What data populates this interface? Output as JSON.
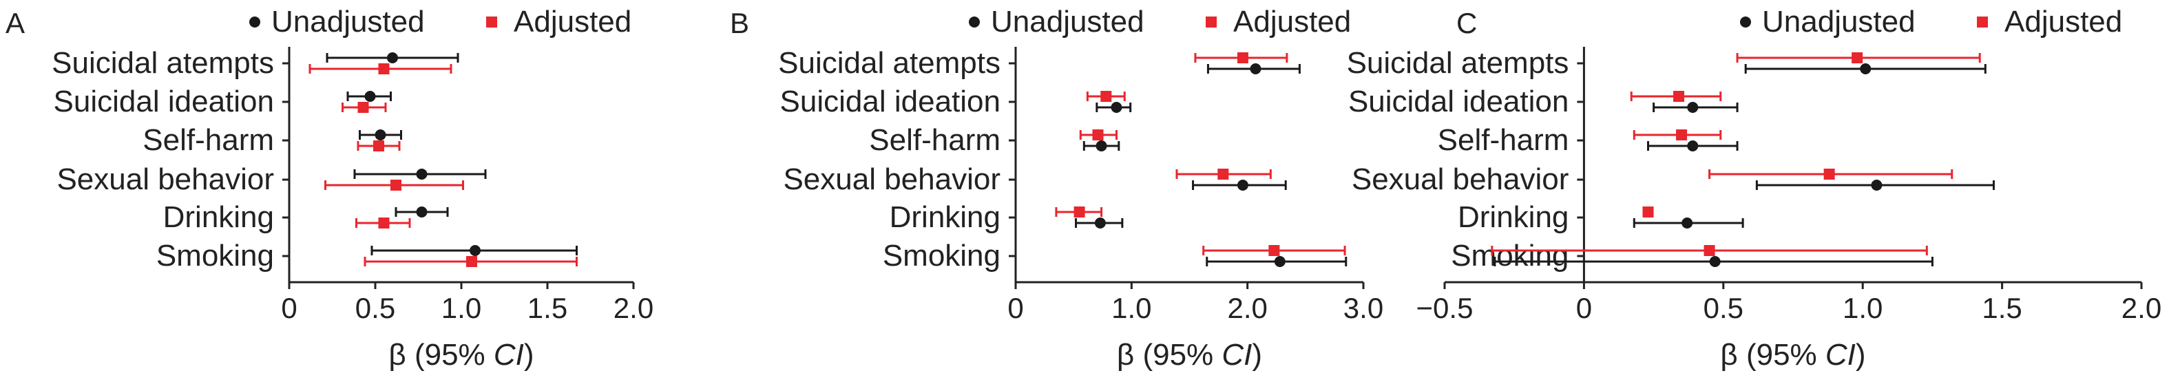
{
  "colors": {
    "unadjusted": "#1a1a1a",
    "adjusted": "#e8262d",
    "axis": "#222222"
  },
  "chart_data": [
    {
      "type": "scatter",
      "panel_label": "A",
      "categories": [
        "Suicidal atempts",
        "Suicidal ideation",
        "Self-harm",
        "Sexual behavior",
        "Drinking",
        "Smoking"
      ],
      "legend": {
        "placement": "top-right",
        "entries": [
          "Unadjusted",
          "Adjusted"
        ]
      },
      "xlabel": "β (95% CI)",
      "xlim": [
        0,
        2.0
      ],
      "xticks": [
        "0",
        "0.5",
        "1.0",
        "1.5",
        "2.0"
      ],
      "grid": false,
      "series": [
        {
          "name": "Unadjusted",
          "marker": "circle",
          "values": [
            0.6,
            0.47,
            0.53,
            0.77,
            0.77,
            1.08
          ],
          "ci": [
            [
              0.22,
              0.98
            ],
            [
              0.34,
              0.59
            ],
            [
              0.41,
              0.65
            ],
            [
              0.38,
              1.14
            ],
            [
              0.62,
              0.92
            ],
            [
              0.48,
              1.67
            ]
          ]
        },
        {
          "name": "Adjusted",
          "marker": "square",
          "values": [
            0.55,
            0.43,
            0.52,
            0.62,
            0.55,
            1.06
          ],
          "ci": [
            [
              0.12,
              0.94
            ],
            [
              0.31,
              0.56
            ],
            [
              0.4,
              0.64
            ],
            [
              0.21,
              1.01
            ],
            [
              0.39,
              0.7
            ],
            [
              0.44,
              1.67
            ]
          ]
        }
      ]
    },
    {
      "type": "scatter",
      "panel_label": "B",
      "categories": [
        "Suicidal atempts",
        "Suicidal ideation",
        "Self-harm",
        "Sexual behavior",
        "Drinking",
        "Smoking"
      ],
      "legend": {
        "placement": "top-right",
        "entries": [
          "Unadjusted",
          "Adjusted"
        ]
      },
      "xlabel": "β (95% CI)",
      "xlim": [
        0,
        3.0
      ],
      "xticks": [
        "0",
        "1.0",
        "2.0",
        "3.0"
      ],
      "grid": false,
      "series": [
        {
          "name": "Unadjusted",
          "marker": "circle",
          "values": [
            2.07,
            0.87,
            0.74,
            1.96,
            0.73,
            2.28
          ],
          "ci": [
            [
              1.66,
              2.45
            ],
            [
              0.7,
              0.99
            ],
            [
              0.59,
              0.89
            ],
            [
              1.53,
              2.33
            ],
            [
              0.52,
              0.92
            ],
            [
              1.65,
              2.85
            ]
          ]
        },
        {
          "name": "Adjusted",
          "marker": "square",
          "values": [
            1.96,
            0.78,
            0.71,
            1.79,
            0.55,
            2.23
          ],
          "ci": [
            [
              1.55,
              2.34
            ],
            [
              0.62,
              0.94
            ],
            [
              0.56,
              0.87
            ],
            [
              1.39,
              2.2
            ],
            [
              0.35,
              0.74
            ],
            [
              1.62,
              2.84
            ]
          ]
        }
      ]
    },
    {
      "type": "scatter",
      "panel_label": "C",
      "categories": [
        "Suicidal atempts",
        "Suicidal ideation",
        "Self-harm",
        "Sexual behavior",
        "Drinking",
        "Smoking"
      ],
      "legend": {
        "placement": "top-right",
        "entries": [
          "Unadjusted",
          "Adjusted"
        ]
      },
      "xlabel": "β (95% CI)",
      "xlim": [
        -0.5,
        2.0
      ],
      "xticks": [
        "−0.5",
        "0",
        "0.5",
        "1.0",
        "1.5",
        "2.0"
      ],
      "grid": false,
      "series": [
        {
          "name": "Unadjusted",
          "marker": "circle",
          "values": [
            1.01,
            0.39,
            0.39,
            1.05,
            0.37,
            0.47
          ],
          "ci": [
            [
              0.58,
              1.44
            ],
            [
              0.25,
              0.55
            ],
            [
              0.23,
              0.55
            ],
            [
              0.62,
              1.47
            ],
            [
              0.18,
              0.57
            ],
            [
              -0.32,
              1.25
            ]
          ]
        },
        {
          "name": "Adjusted",
          "marker": "square",
          "values": [
            0.98,
            0.34,
            0.35,
            0.88,
            0.23,
            0.45
          ],
          "ci": [
            [
              0.55,
              1.42
            ],
            [
              0.17,
              0.49
            ],
            [
              0.18,
              0.49
            ],
            [
              0.45,
              1.32
            ],
            [
              0.23,
              0.23
            ],
            [
              -0.33,
              1.23
            ]
          ]
        }
      ]
    }
  ]
}
